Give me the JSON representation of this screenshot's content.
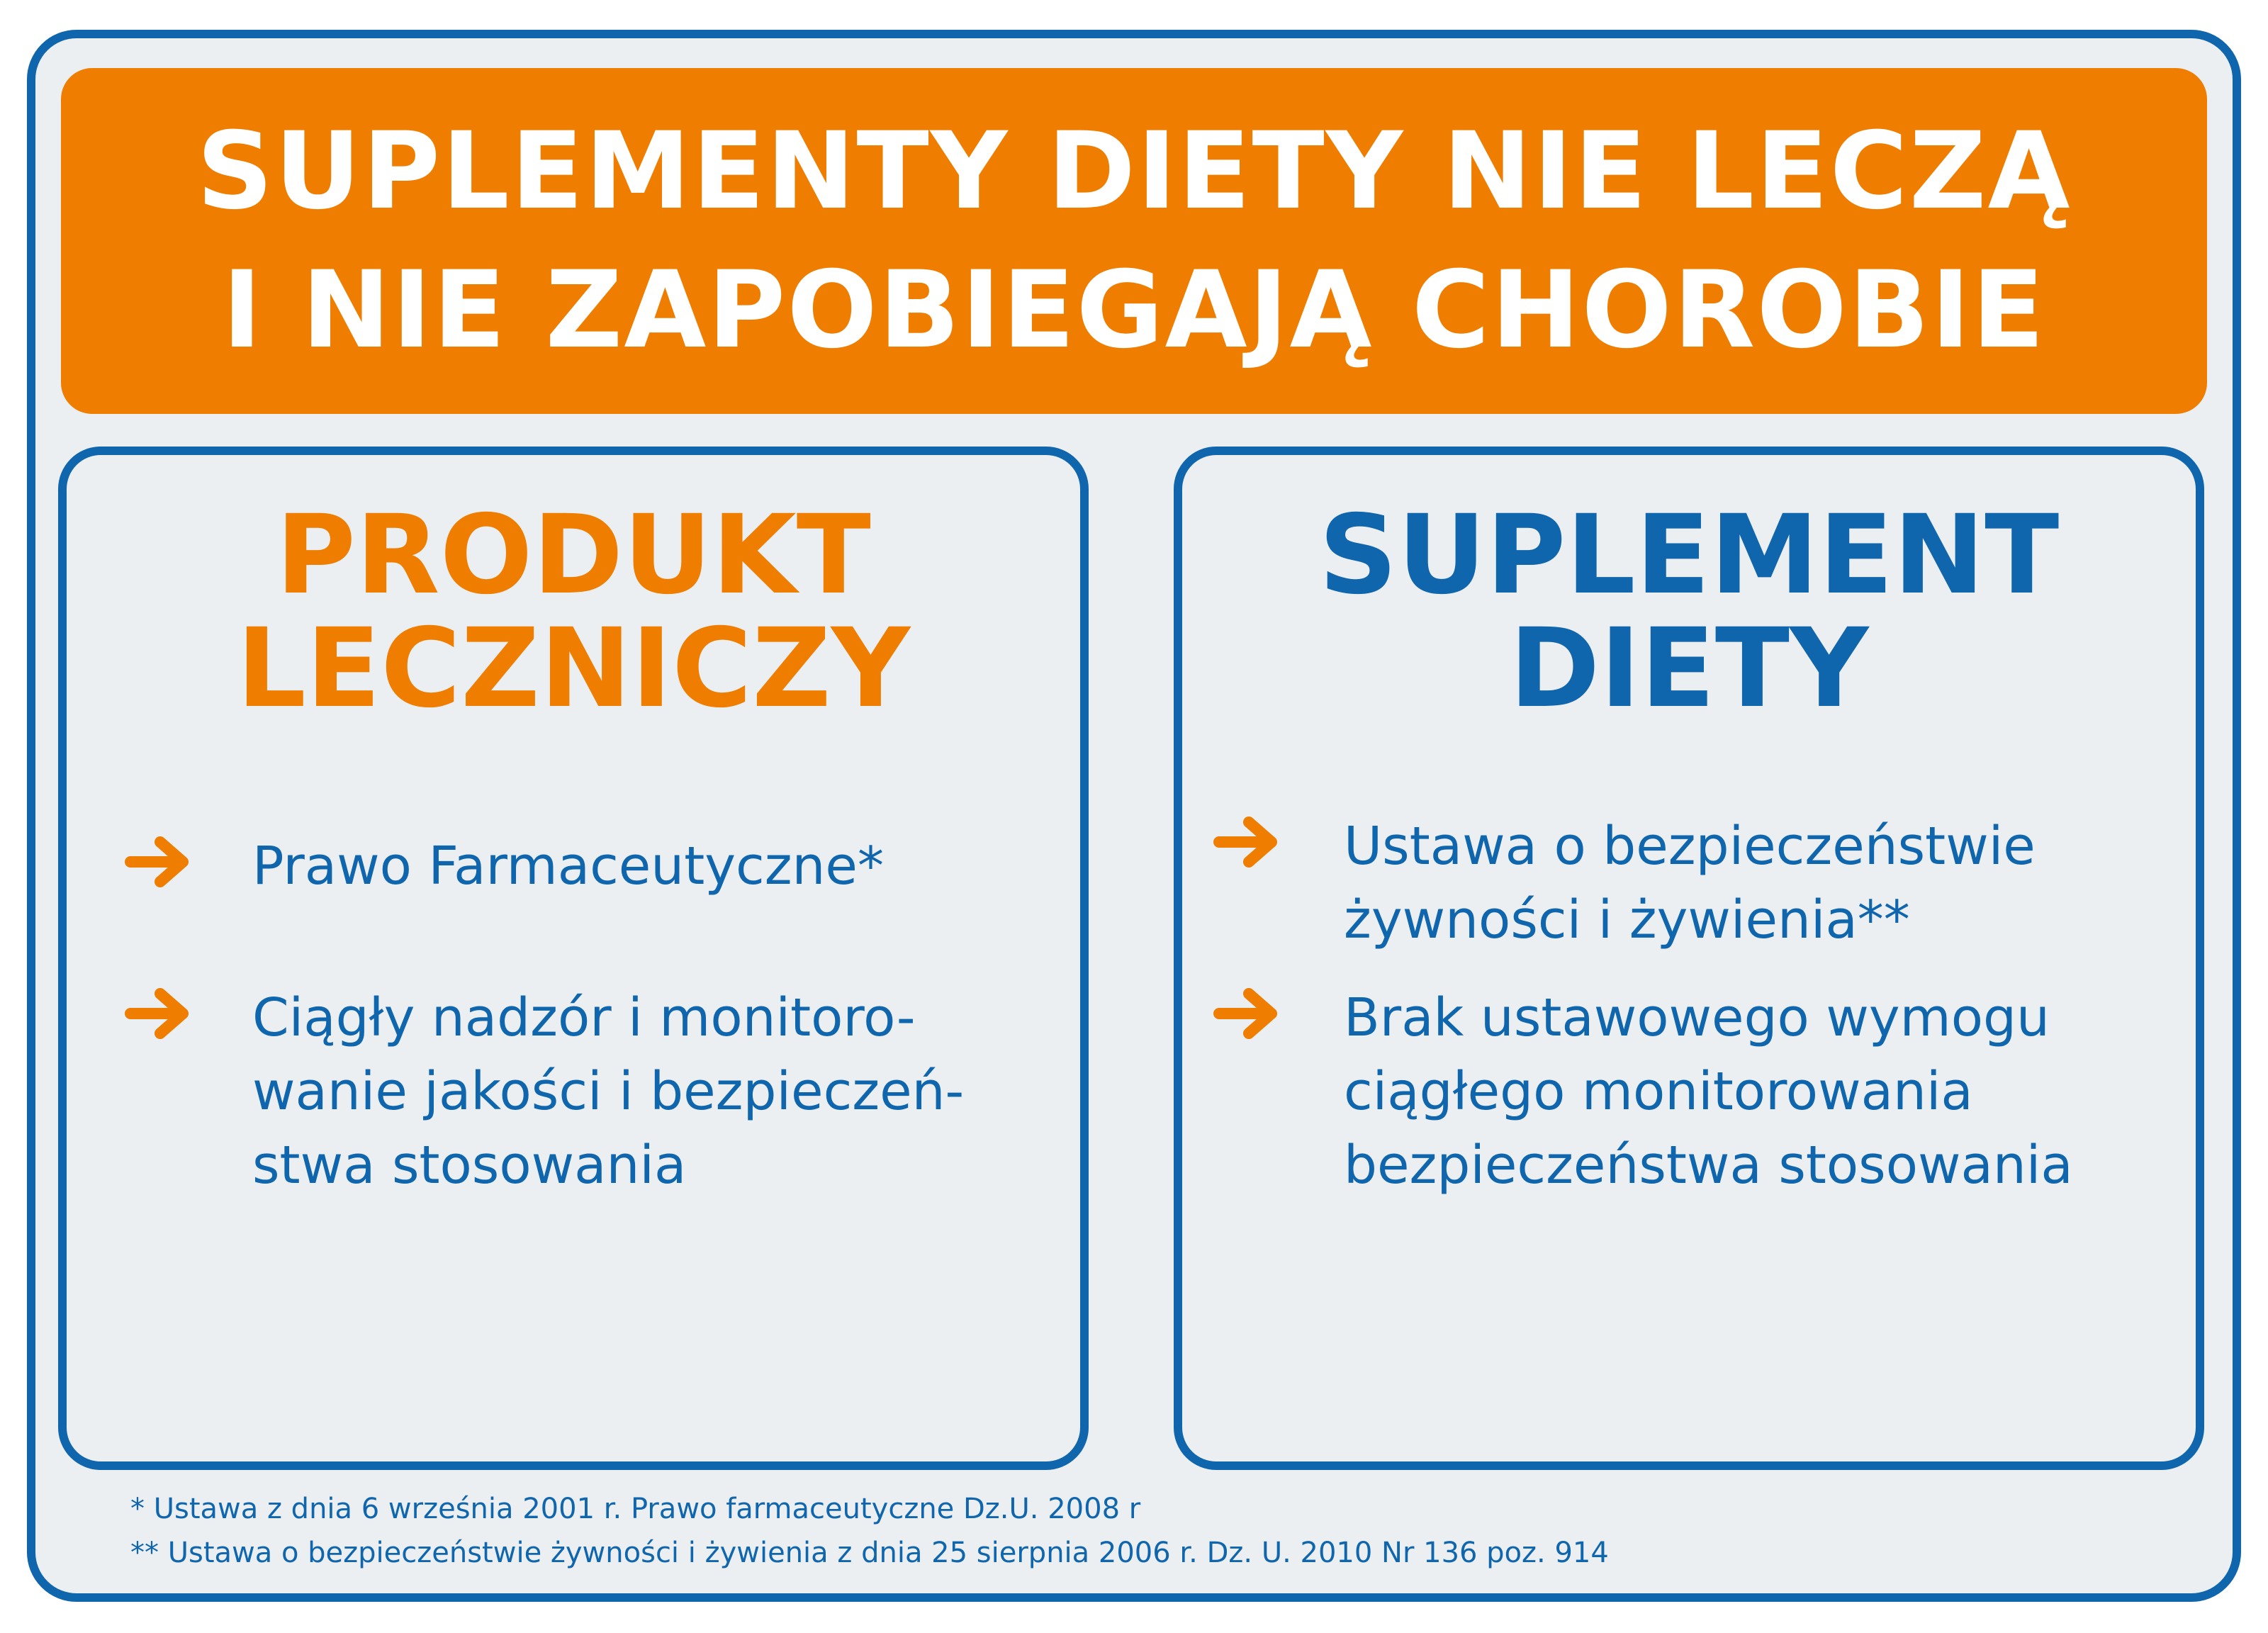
{
  "banner": {
    "line1": "SUPLEMENTY DIETY NIE LECZĄ",
    "line2": "I NIE ZAPOBIEGAJĄ CHOROBIE",
    "color": "#ef7d00"
  },
  "left_card": {
    "title_line1": "PRODUKT",
    "title_line2": "LECZNICZY",
    "title_color": "#ef7d00",
    "items": [
      {
        "lines": [
          "Prawo Farmaceutyczne*"
        ]
      },
      {
        "lines": [
          "Ciągły nadzór i monitoro-",
          "wanie jakości i bezpieczeń-",
          "stwa stosowania"
        ]
      }
    ]
  },
  "right_card": {
    "title_line1": "SUPLEMENT",
    "title_line2": "DIETY",
    "title_color": "#0f66ad",
    "items": [
      {
        "lines": [
          "Ustawa o bezpieczeństwie",
          "żywności i żywienia**"
        ]
      },
      {
        "lines": [
          "Brak ustawowego wymogu",
          "ciągłego monitorowania",
          "bezpieczeństwa stosowania"
        ]
      }
    ]
  },
  "footnotes": {
    "note1": "* Ustawa z dnia 6 września 2001 r. Prawo farmaceutyczne Dz.U. 2008 r",
    "note2": "** Ustawa o bezpieczeństwie żywności i żywienia z dnia 25 sierpnia 2006 r. Dz. U. 2010 Nr 136 poz. 914"
  },
  "icons": {
    "bullet": "arrow-right-icon",
    "arrow_color": "#ef7d00"
  },
  "colors": {
    "border": "#0f66ad",
    "background": "#eceff2",
    "text": "#0f66ad"
  }
}
